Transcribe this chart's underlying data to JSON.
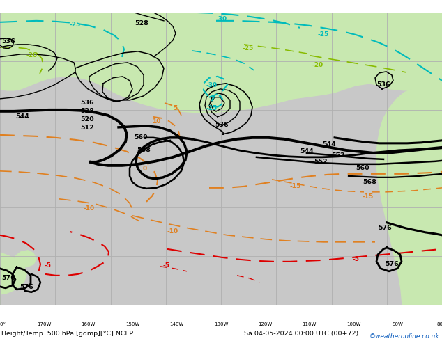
{
  "title_left": "Height/Temp. 500 hPa [gdmp][°C] NCEP",
  "title_right": "Sá 04-05-2024 00:00 UTC (00+72)",
  "credit": "©weatheronline.co.uk",
  "bg_sea": "#c8c8c8",
  "bg_land": "#c8e8b0",
  "grid_color": "#b0b0b0",
  "black": "#000000",
  "orange": "#e08020",
  "red": "#dd0000",
  "cyan": "#00bbbb",
  "green": "#88bb00",
  "figsize": [
    6.34,
    4.9
  ],
  "dpi": 100
}
